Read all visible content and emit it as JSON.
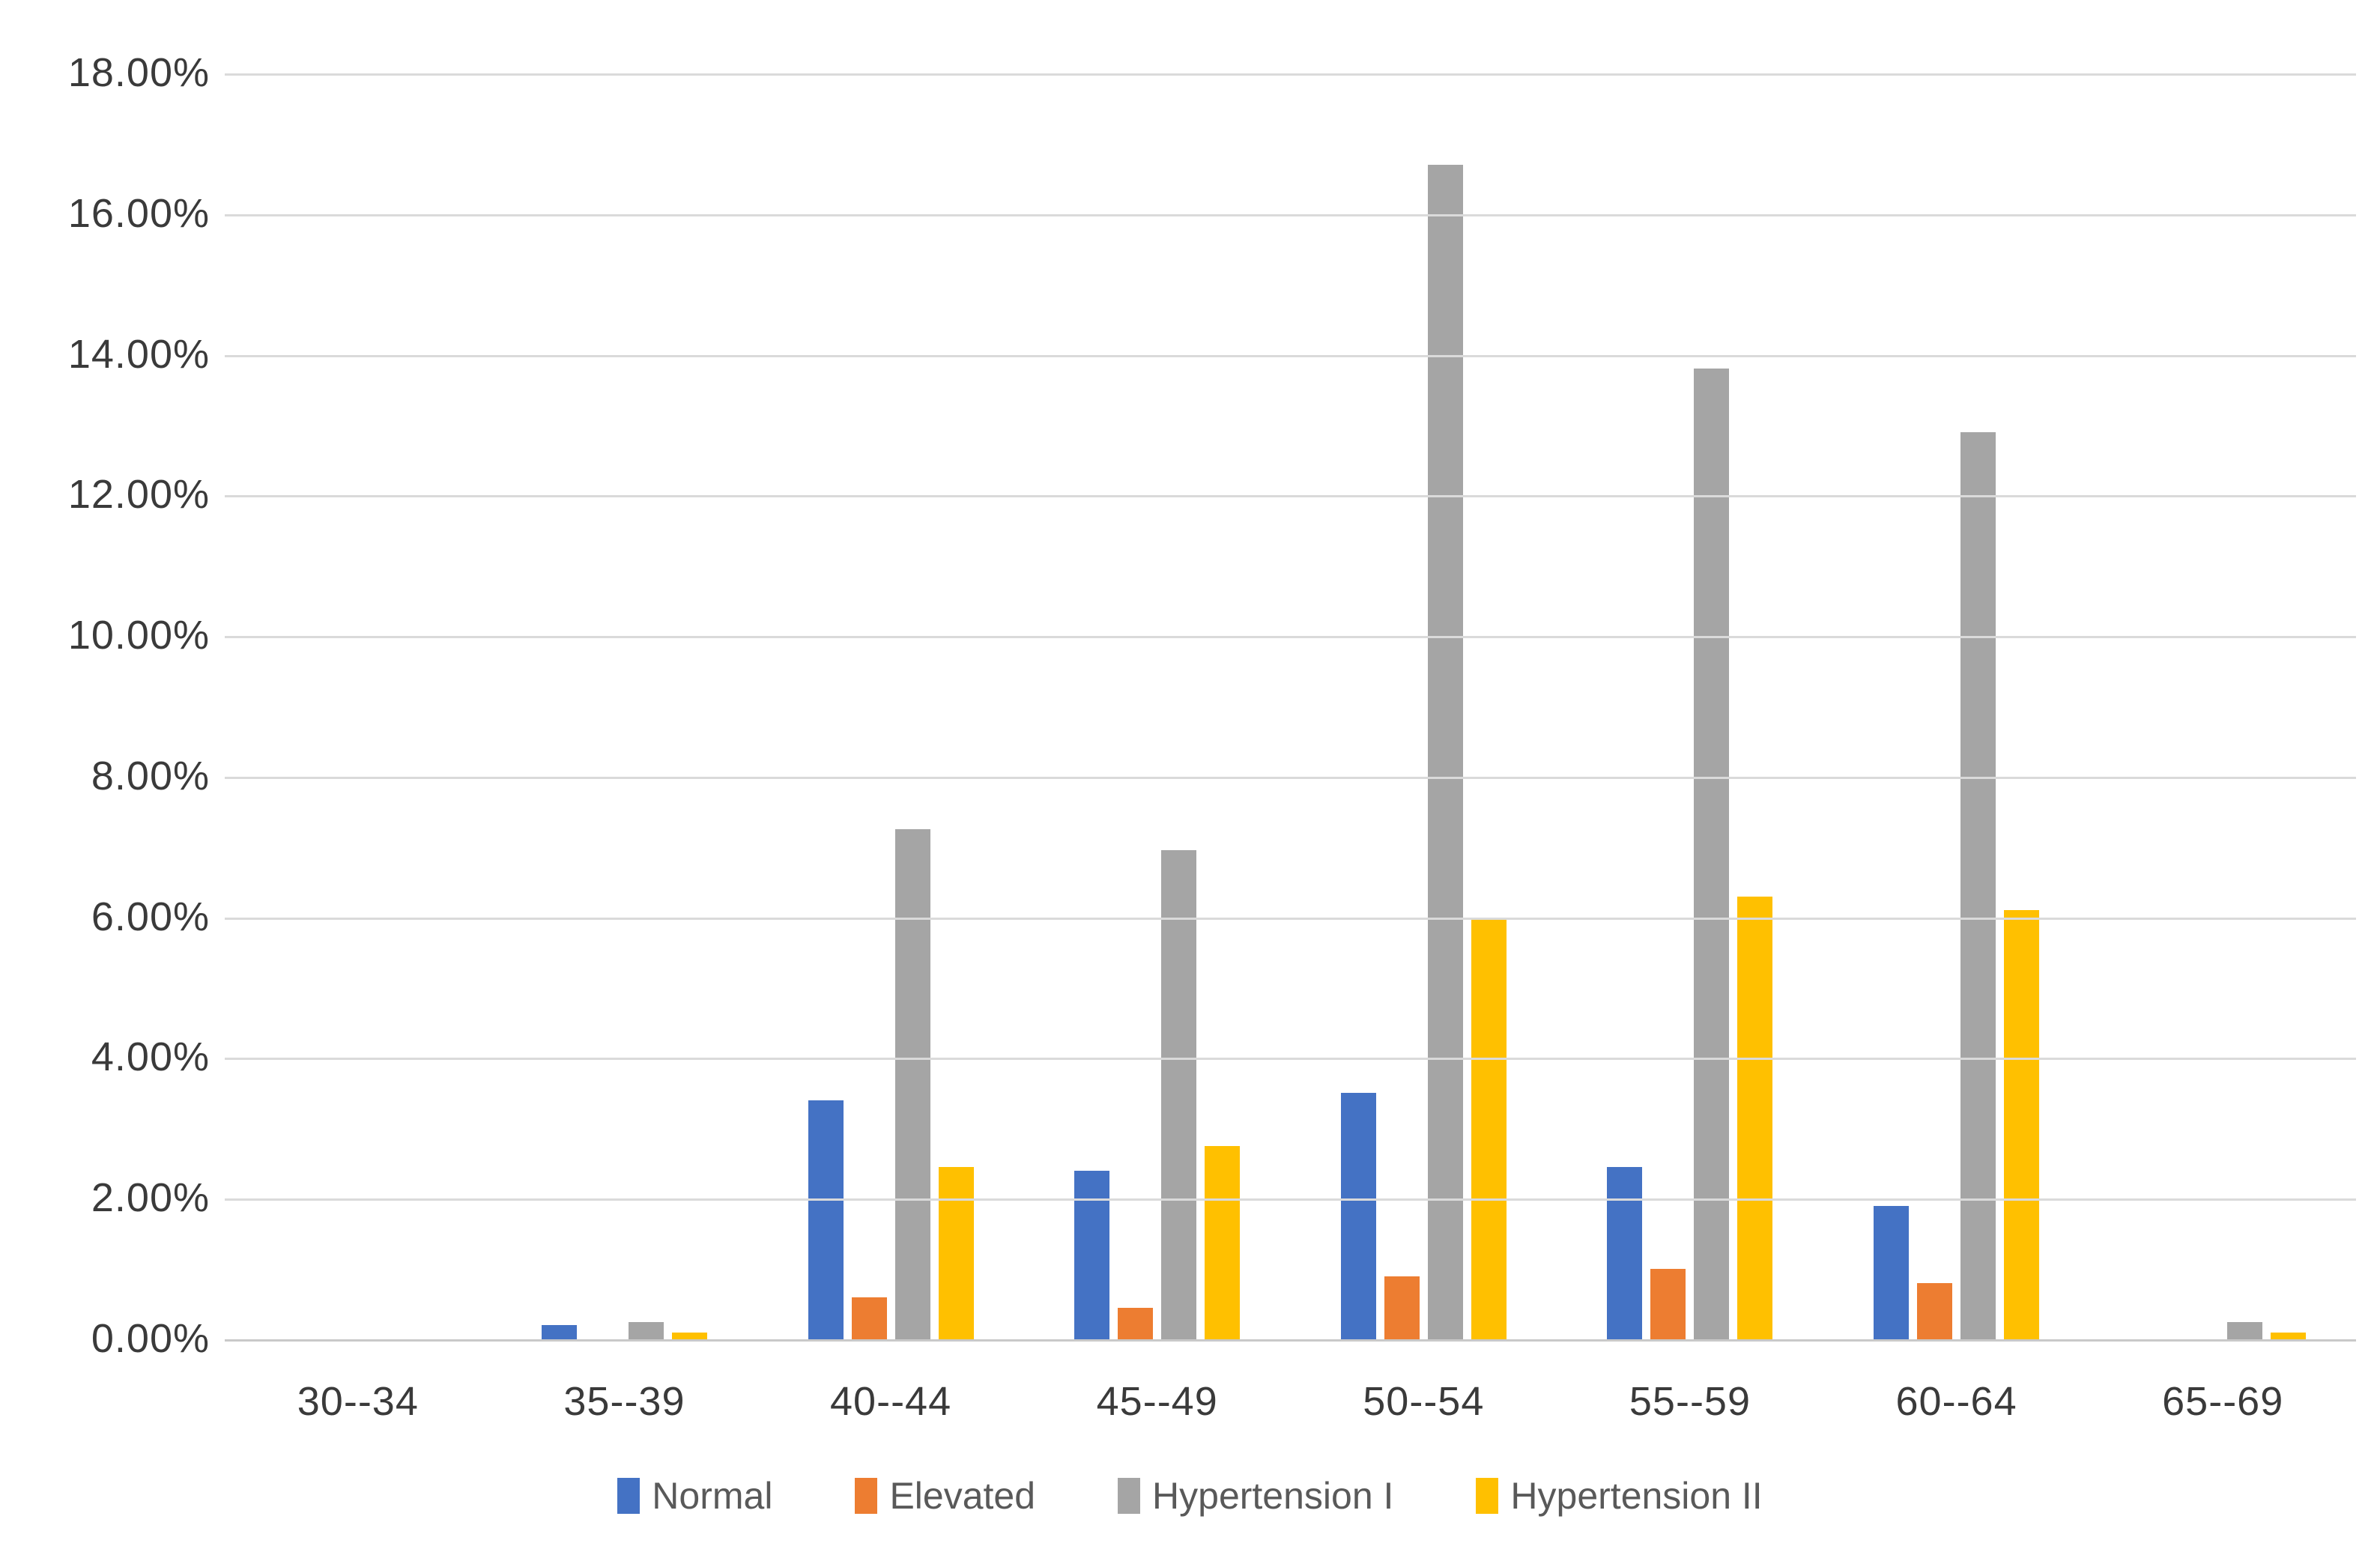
{
  "colors": {
    "background": "#ffffff",
    "gridline": "#dadada",
    "axis_line": "#c9c9c9",
    "tick_text": "#3a3a3a",
    "legend_text": "#595959",
    "series_normal": "#4472c4",
    "series_elevated": "#ed7d31",
    "series_hypertension1": "#a5a5a5",
    "series_hypertension2": "#ffc000"
  },
  "y_axis": {
    "tick_labels_top_to_bottom": [
      "18.00%",
      "16.00%",
      "14.00%",
      "12.00%",
      "10.00%",
      "8.00%",
      "6.00%",
      "4.00%",
      "2.00%",
      "0.00%"
    ]
  },
  "chart_data": {
    "type": "bar",
    "title": "",
    "xlabel": "",
    "ylabel": "",
    "categories": [
      "30--34",
      "35--39",
      "40--44",
      "45--49",
      "50--54",
      "55--59",
      "60--64",
      "65--69"
    ],
    "series": [
      {
        "name": "Normal",
        "color": "#4472c4",
        "values": [
          0,
          0.2,
          3.4,
          2.4,
          3.5,
          2.45,
          1.9,
          0
        ]
      },
      {
        "name": "Elevated",
        "color": "#ed7d31",
        "values": [
          0,
          0,
          0.6,
          0.45,
          0.9,
          1.0,
          0.8,
          0
        ]
      },
      {
        "name": "Hypertension I",
        "color": "#a5a5a5",
        "values": [
          0,
          0.25,
          7.25,
          6.95,
          16.7,
          13.8,
          12.9,
          0.25
        ]
      },
      {
        "name": "Hypertension II",
        "color": "#ffc000",
        "values": [
          0,
          0.1,
          2.45,
          2.75,
          6.0,
          6.3,
          6.1,
          0.1
        ]
      }
    ],
    "ylim": [
      0,
      18
    ],
    "y_tick_step": 2,
    "grid": "horizontal",
    "legend_position": "bottom"
  }
}
